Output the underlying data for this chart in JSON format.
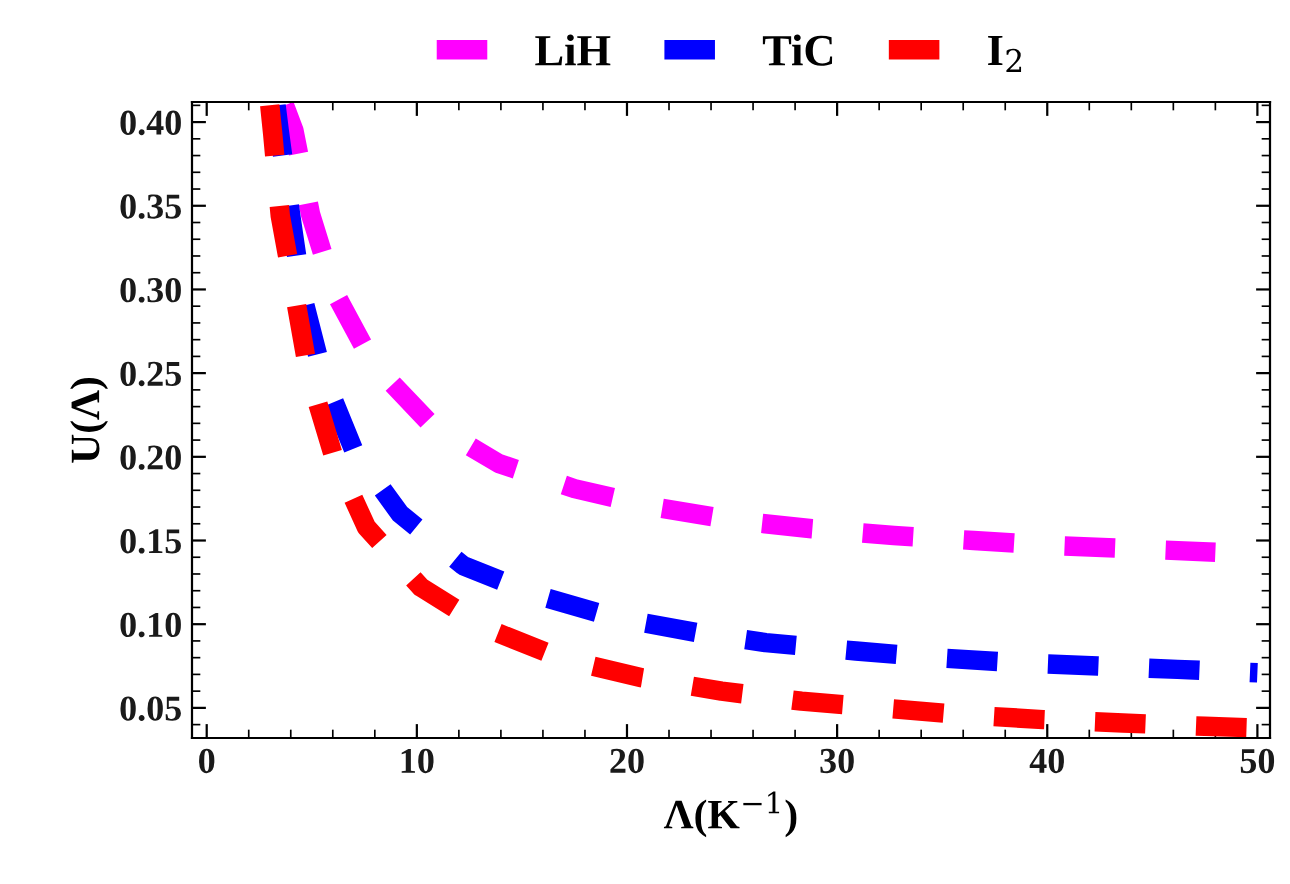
{
  "chart_data": {
    "type": "line",
    "xlabel": "Λ(K$^{−1}$)",
    "ylabel": "U(Λ)",
    "xlim": [
      -0.7,
      50.6
    ],
    "ylim": [
      0.032,
      0.412
    ],
    "xticks": [
      0,
      10,
      20,
      30,
      40,
      50
    ],
    "yticks": [
      {
        "value": 0.05,
        "label": "0.05"
      },
      {
        "value": 0.1,
        "label": "0.10"
      },
      {
        "value": 0.15,
        "label": "0.15"
      },
      {
        "value": 0.2,
        "label": "0.20"
      },
      {
        "value": 0.25,
        "label": "0.25"
      },
      {
        "value": 0.3,
        "label": "0.30"
      },
      {
        "value": 0.35,
        "label": "0.35"
      },
      {
        "value": 0.4,
        "label": "0.40"
      }
    ],
    "legend": "top",
    "grid": false,
    "marker": "none",
    "line_style": "dashed",
    "series": [
      {
        "name": "LiH",
        "color": "#ff00ff",
        "x": [
          3.7,
          4.15,
          4.94,
          6.1,
          7.9,
          10.55,
          13.9,
          17.5,
          21.3,
          25.1,
          28.8,
          32.7,
          36.5,
          40.3,
          44.2,
          48.0
        ],
        "values": [
          0.41,
          0.395,
          0.345,
          0.298,
          0.256,
          0.221,
          0.196,
          0.181,
          0.17,
          0.162,
          0.157,
          0.153,
          0.15,
          0.147,
          0.145,
          0.143
        ]
      },
      {
        "name": "TiC",
        "color": "#0000ff",
        "x": [
          3.3,
          3.45,
          4.0,
          4.56,
          5.5,
          7.0,
          9.2,
          12.2,
          15.8,
          19.4,
          23.3,
          26.6,
          30.9,
          34.7,
          38.5,
          42.4,
          46.2,
          50.0
        ],
        "values": [
          0.41,
          0.395,
          0.344,
          0.296,
          0.25,
          0.204,
          0.166,
          0.135,
          0.117,
          0.104,
          0.095,
          0.089,
          0.084,
          0.08,
          0.077,
          0.075,
          0.073,
          0.071
        ]
      },
      {
        "name": "I$_{2}$",
        "color": "#ff0000",
        "x": [
          3.0,
          3.14,
          3.5,
          4.2,
          4.85,
          6.0,
          7.6,
          10.2,
          13.4,
          17.0,
          20.7,
          24.5,
          28.3,
          32.1,
          35.9,
          39.8,
          43.6,
          47.5,
          50.0
        ],
        "values": [
          0.41,
          0.393,
          0.344,
          0.296,
          0.25,
          0.202,
          0.158,
          0.122,
          0.097,
          0.079,
          0.068,
          0.06,
          0.054,
          0.05,
          0.046,
          0.043,
          0.041,
          0.039,
          0.038
        ]
      }
    ]
  }
}
